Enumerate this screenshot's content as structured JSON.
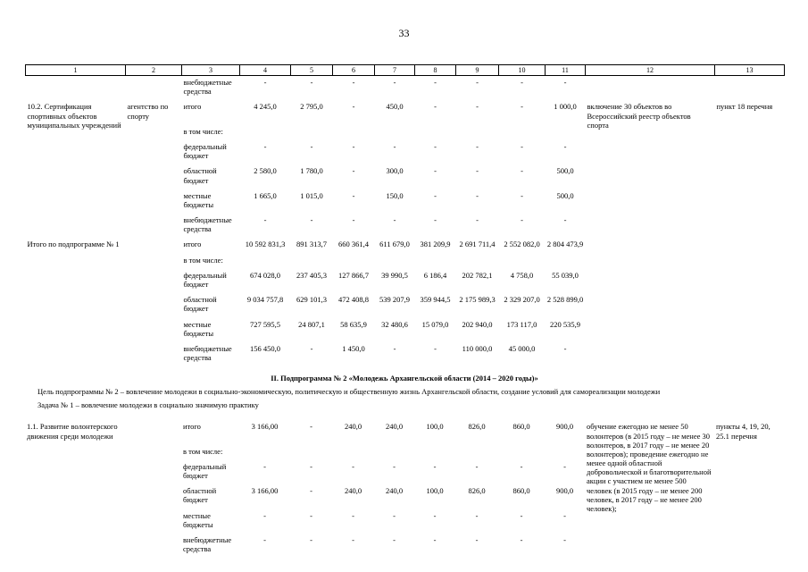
{
  "page": {
    "number": "33"
  },
  "section": {
    "heading": "II. Подпрограмма № 2 «Молодежь Архангельской области (2014 – 2020 годы)»",
    "goal": "Цель подпрограммы № 2 – вовлечение молодежи в социально-экономическую, политическую и общественную жизнь Архангельской области, создание условий для самореализации молодежи",
    "task": "Задача № 1 – вовлечение молодежи в социально значимую практику"
  },
  "table": {
    "header": [
      "1",
      "2",
      "3",
      "4",
      "5",
      "6",
      "7",
      "8",
      "9",
      "10",
      "11",
      "12",
      "13"
    ],
    "part1_rows": [
      [
        "",
        "",
        "внебюджетные средства",
        "-",
        "-",
        "-",
        "-",
        "-",
        "-",
        "-",
        "-",
        "",
        ""
      ],
      [
        {
          "text": "10.2. Сертификация спортивных объектов муниципальных учреждений",
          "abs": true
        },
        "агентство по спорту",
        "итого",
        "4 245,0",
        "2 795,0",
        "-",
        "450,0",
        "-",
        "-",
        "-",
        "1 000,0",
        {
          "text": "включение 30 объектов во Всероссийский реестр объектов спорта",
          "abs": true
        },
        "пункт 18 перечня"
      ],
      [
        "",
        "",
        "в том числе:",
        "",
        "",
        "",
        "",
        "",
        "",
        "",
        "",
        "",
        ""
      ],
      [
        "",
        "",
        "федеральный бюджет",
        "-",
        "-",
        "-",
        "-",
        "-",
        "-",
        "-",
        "-",
        "",
        ""
      ],
      [
        "",
        "",
        "областной бюджет",
        "2 580,0",
        "1 780,0",
        "-",
        "300,0",
        "-",
        "-",
        "-",
        "500,0",
        "",
        ""
      ],
      [
        "",
        "",
        "местные бюджеты",
        "1 665,0",
        "1 015,0",
        "-",
        "150,0",
        "-",
        "-",
        "-",
        "500,0",
        "",
        ""
      ],
      [
        "",
        "",
        "внебюджетные средства",
        "-",
        "-",
        "-",
        "-",
        "-",
        "-",
        "-",
        "-",
        "",
        ""
      ],
      [
        {
          "text": "Итого по подпрограмме № 1",
          "abs": true
        },
        "",
        "итого",
        "10 592 831,3",
        "891 313,7",
        "660 361,4",
        "611 679,0",
        "381 209,9",
        "2 691 711,4",
        "2 552 082,0",
        "2 804 473,9",
        "",
        ""
      ],
      [
        "",
        "",
        "в том числе:",
        "",
        "",
        "",
        "",
        "",
        "",
        "",
        "",
        "",
        ""
      ],
      [
        "",
        "",
        "федеральный бюджет",
        "674 028,0",
        "237 405,3",
        "127 866,7",
        "39 990,5",
        "6 186,4",
        "202 782,1",
        "4 758,0",
        "55 039,0",
        "",
        ""
      ],
      [
        "",
        "",
        "областной бюджет",
        "9 034 757,8",
        "629 101,3",
        "472 408,8",
        "539 207,9",
        "359 944,5",
        "2 175 989,3",
        "2 329 207,0",
        "2 528 899,0",
        "",
        ""
      ],
      [
        "",
        "",
        "местные бюджеты",
        "727 595,5",
        "24 807,1",
        "58 635,9",
        "32 480,6",
        "15 079,0",
        "202 940,0",
        "173 117,0",
        "220 535,9",
        "",
        ""
      ],
      [
        "",
        "",
        "внебюджетные средства",
        "156 450,0",
        "-",
        "1 450,0",
        "-",
        "-",
        "110 000,0",
        "45 000,0",
        "-",
        "",
        ""
      ]
    ],
    "part2_rows": [
      [
        "1.1. Развитие волонтерского движения среди молодежи",
        "",
        "итого",
        "3 166,00",
        "-",
        "240,0",
        "240,0",
        "100,0",
        "826,0",
        "860,0",
        "900,0",
        {
          "text": "обучение ежегодно не менее 50 волонтеров (в 2015 году – не менее 30 волонтеров, в 2017 году – не менее 20 волонтеров); проведение ежегодно не менее одной областной добровольческой и благотворительной акции с участием не менее 500 человек (в 2015 году – не менее 200 человек, в 2017 году – не менее 200 человек);",
          "abs": true
        },
        "пункты 4, 19, 20, 25.1 перечня"
      ],
      [
        "",
        "",
        "в том числе:",
        "",
        "",
        "",
        "",
        "",
        "",
        "",
        "",
        "",
        ""
      ],
      [
        "",
        "",
        "федеральный бюджет",
        "-",
        "-",
        "-",
        "-",
        "-",
        "-",
        "-",
        "-",
        "",
        ""
      ],
      [
        "",
        "",
        "областной бюджет",
        "3 166,00",
        "-",
        "240,0",
        "240,0",
        "100,0",
        "826,0",
        "860,0",
        "900,0",
        "",
        ""
      ],
      [
        "",
        "",
        "местные бюджеты",
        "-",
        "-",
        "-",
        "-",
        "-",
        "-",
        "-",
        "-",
        "",
        ""
      ],
      [
        "",
        "",
        "внебюджетные средства",
        "-",
        "-",
        "-",
        "-",
        "-",
        "-",
        "-",
        "-",
        "",
        ""
      ]
    ]
  }
}
